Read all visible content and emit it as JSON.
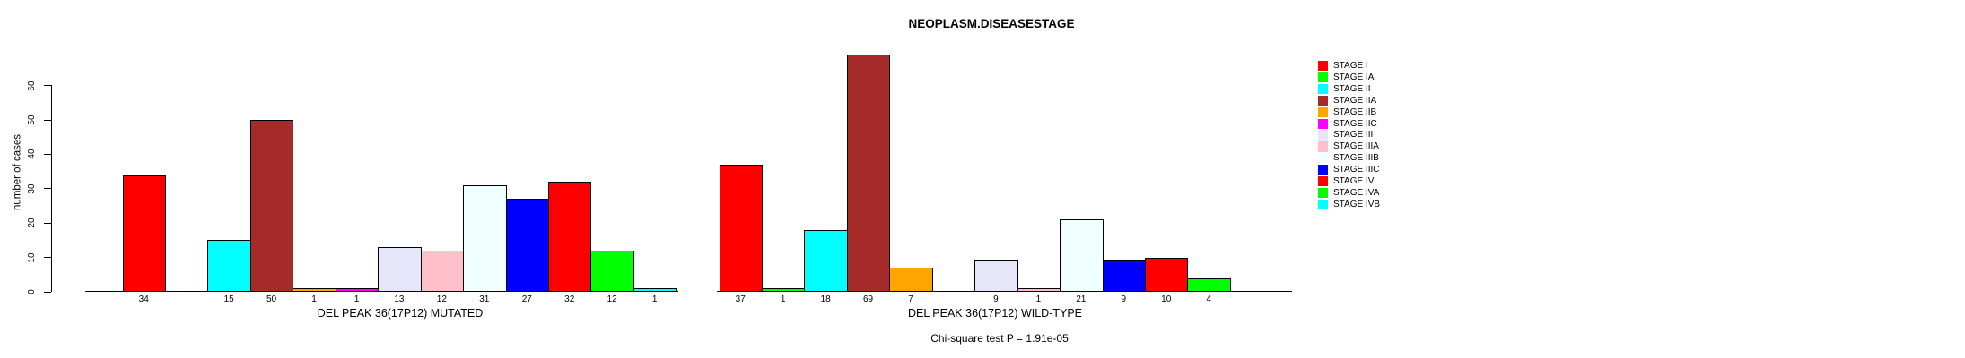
{
  "title": "NEOPLASM.DISEASESTAGE",
  "chart_data": {
    "type": "bar",
    "title": "NEOPLASM.DISEASESTAGE",
    "ylabel": "number of cases",
    "ylim": [
      0,
      60
    ],
    "yticks": [
      0,
      10,
      20,
      30,
      40,
      50,
      60
    ],
    "grid": false,
    "legend_position": "right",
    "categories": [
      "STAGE I",
      "STAGE IA",
      "STAGE II",
      "STAGE IIA",
      "STAGE IIB",
      "STAGE IIC",
      "STAGE III",
      "STAGE IIIA",
      "STAGE IIIB",
      "STAGE IIIC",
      "STAGE IV",
      "STAGE IVA",
      "STAGE IVB"
    ],
    "colors": [
      "#FF0000",
      "#00FF00",
      "#00FFFF",
      "#A52A2A",
      "#FFA500",
      "#FF00FF",
      "#E6E6FA",
      "#FFC0CB",
      "#F0FFFF",
      "#0000FF",
      "#FF0000",
      "#00FF00",
      "#00FFFF"
    ],
    "series": [
      {
        "name": "DEL PEAK 36(17P12) MUTATED",
        "values": [
          34,
          0,
          15,
          50,
          1,
          1,
          13,
          12,
          31,
          27,
          32,
          12,
          1
        ]
      },
      {
        "name": "DEL PEAK 36(17P12) WILD-TYPE",
        "values": [
          37,
          1,
          18,
          69,
          7,
          0,
          9,
          1,
          21,
          9,
          10,
          4,
          0
        ]
      }
    ],
    "bar_value_labels_shown": true,
    "stat_annotation": "Chi-square test P = 1.91e-05"
  }
}
